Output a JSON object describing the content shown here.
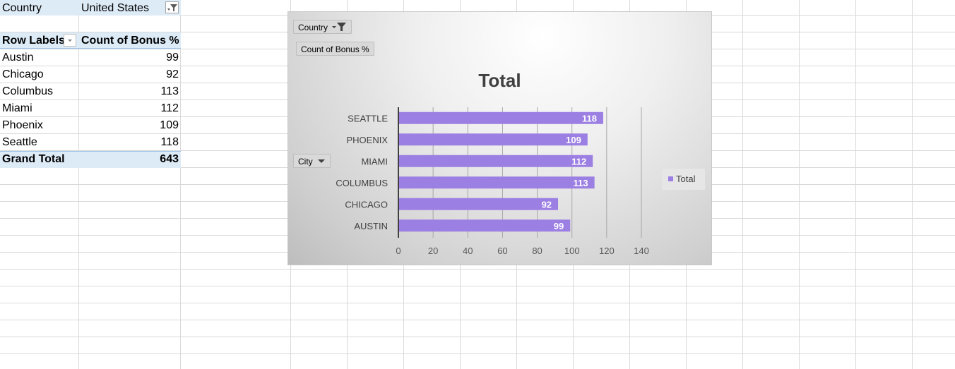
{
  "pivot": {
    "filter_label": "Country",
    "filter_value": "United States",
    "row_labels_header": "Row Labels",
    "value_header": "Count of Bonus %",
    "rows": [
      {
        "label": "Austin",
        "value": "99"
      },
      {
        "label": "Chicago",
        "value": "92"
      },
      {
        "label": "Columbus",
        "value": "113"
      },
      {
        "label": "Miami",
        "value": "112"
      },
      {
        "label": "Phoenix",
        "value": "109"
      },
      {
        "label": "Seattle",
        "value": "118"
      }
    ],
    "grand_total_label": "Grand Total",
    "grand_total_value": "643"
  },
  "chart_buttons": {
    "country": "Country",
    "count": "Count of Bonus %",
    "city": "City"
  },
  "chart_data": {
    "type": "bar",
    "orientation": "horizontal",
    "title": "Total",
    "categories": [
      "SEATTLE",
      "PHOENIX",
      "MIAMI",
      "COLUMBUS",
      "CHICAGO",
      "AUSTIN"
    ],
    "series": [
      {
        "name": "Total",
        "values": [
          118,
          109,
          112,
          113,
          92,
          99
        ],
        "color": "#9c7fe3"
      }
    ],
    "xlim": [
      0,
      140
    ],
    "ticks": [
      "0",
      "20",
      "40",
      "60",
      "80",
      "100",
      "120",
      "140"
    ],
    "grid": true,
    "legend": "right",
    "data_labels": true
  }
}
